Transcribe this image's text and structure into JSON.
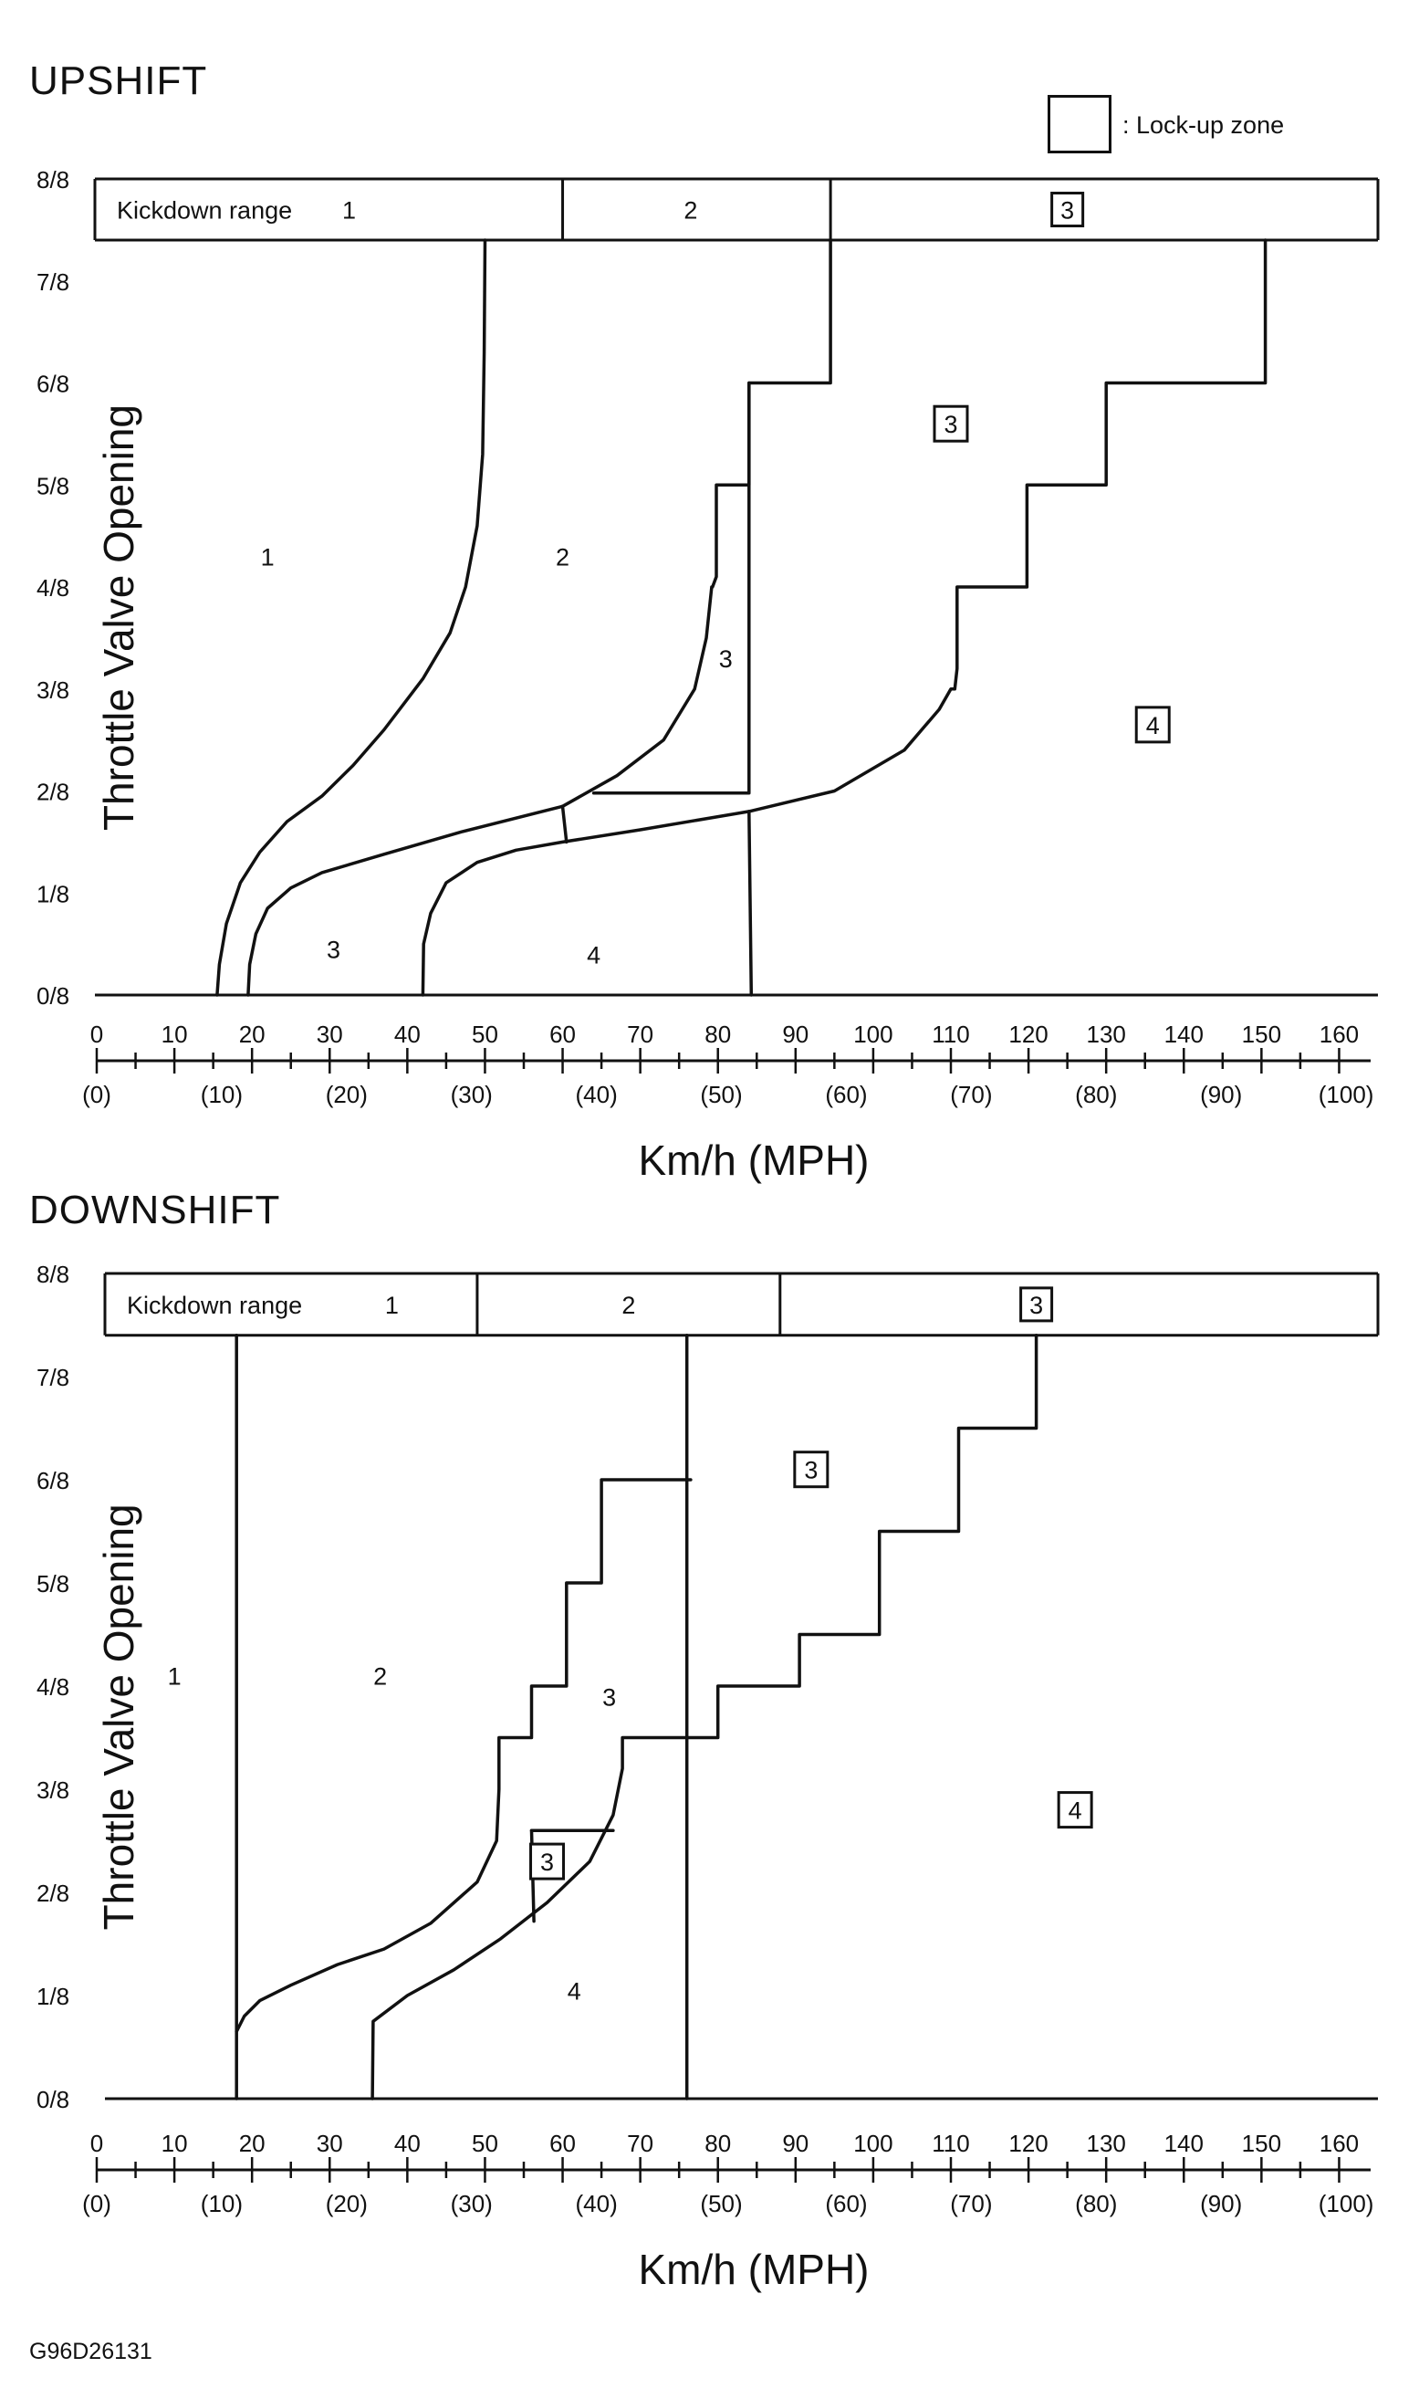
{
  "legend": {
    "box_label": ": Lock-up zone"
  },
  "figure_code": "G96D26131",
  "chart_data": [
    {
      "type": "line",
      "title": "UPSHIFT",
      "ylabel": "Throttle Valve Opening",
      "xlabel": "Km/h (MPH)",
      "xlim": [
        0,
        165
      ],
      "ylim": [
        0,
        8
      ],
      "x_ticks": [
        "0",
        "10",
        "20",
        "30",
        "40",
        "50",
        "60",
        "70",
        "80",
        "90",
        "100",
        "110",
        "120",
        "130",
        "140",
        "150",
        "160"
      ],
      "x_ticks_mph": [
        "(0)",
        "(10)",
        "(20)",
        "(30)",
        "(40)",
        "(50)",
        "(60)",
        "(70)",
        "(80)",
        "(90)",
        "(100)"
      ],
      "y_ticks": [
        "0/8",
        "1/8",
        "2/8",
        "3/8",
        "4/8",
        "5/8",
        "6/8",
        "7/8",
        "8/8"
      ],
      "kickdown": {
        "band": [
          7.4,
          8
        ],
        "label": "Kickdown range",
        "dividers": [
          60,
          94.5
        ],
        "labels": [
          {
            "text": "1",
            "x": 32.5,
            "boxed": false
          },
          {
            "text": "2",
            "x": 76.5,
            "boxed": false
          },
          {
            "text": "3",
            "x": 125,
            "boxed": true
          }
        ]
      },
      "series": [
        {
          "x": [
            15.5,
            15.8,
            16.7,
            18.5,
            21,
            24.5,
            29,
            33,
            37,
            42,
            45.5,
            47.5,
            49,
            49.7,
            49.9,
            50
          ],
          "y": [
            0,
            0.3,
            0.7,
            1.1,
            1.4,
            1.7,
            1.95,
            2.25,
            2.6,
            3.1,
            3.55,
            4,
            4.6,
            5.3,
            6.3,
            7.4
          ]
        },
        {
          "x": [
            19.5,
            19.7,
            20.5,
            22,
            25,
            29,
            37,
            47,
            60
          ],
          "y": [
            0,
            0.3,
            0.6,
            0.85,
            1.05,
            1.2,
            1.38,
            1.6,
            1.85
          ]
        },
        {
          "x": [
            60,
            67,
            73,
            77,
            78.5,
            79.2,
            79.3,
            79.8,
            79.8,
            84,
            84,
            94.5,
            94.5
          ],
          "y": [
            1.85,
            2.15,
            2.5,
            3,
            3.5,
            4,
            4,
            4.1,
            5,
            5,
            6,
            6,
            7.4
          ]
        },
        {
          "x": [
            64,
            84,
            84
          ],
          "y": [
            1.98,
            1.98,
            6
          ]
        },
        {
          "x": [
            42,
            42.1,
            43,
            45,
            49,
            54,
            60,
            70,
            84,
            95,
            104,
            108.5,
            110,
            110.5,
            110.8,
            110.8,
            119.8,
            119.8,
            130,
            130,
            150.5,
            150.5
          ],
          "y": [
            0,
            0.5,
            0.8,
            1.1,
            1.3,
            1.42,
            1.5,
            1.62,
            1.8,
            2,
            2.4,
            2.8,
            3,
            3,
            3.2,
            4,
            4,
            5,
            5,
            6,
            6,
            7.4
          ]
        },
        {
          "x": [
            60,
            60.5
          ],
          "y": [
            1.85,
            1.5
          ]
        },
        {
          "x": [
            84,
            84.3
          ],
          "y": [
            1.8,
            0
          ]
        }
      ],
      "zone_labels": [
        {
          "text": "1",
          "x": 22,
          "y": 4.3,
          "boxed": false
        },
        {
          "text": "2",
          "x": 60,
          "y": 4.3,
          "boxed": false
        },
        {
          "text": "3",
          "x": 81,
          "y": 3.3,
          "boxed": false
        },
        {
          "text": "3",
          "x": 30.5,
          "y": 0.45,
          "boxed": false
        },
        {
          "text": "4",
          "x": 64,
          "y": 0.4,
          "boxed": false
        },
        {
          "text": "3",
          "x": 110,
          "y": 5.6,
          "boxed": true
        },
        {
          "text": "4",
          "x": 136,
          "y": 2.65,
          "boxed": true
        }
      ]
    },
    {
      "type": "line",
      "title": "DOWNSHIFT",
      "ylabel": "Throttle Valve Opening",
      "xlabel": "Km/h (MPH)",
      "xlim": [
        0,
        165
      ],
      "ylim": [
        0,
        8
      ],
      "x_ticks": [
        "0",
        "10",
        "20",
        "30",
        "40",
        "50",
        "60",
        "70",
        "80",
        "90",
        "100",
        "110",
        "120",
        "130",
        "140",
        "150",
        "160"
      ],
      "x_ticks_mph": [
        "(0)",
        "(10)",
        "(20)",
        "(30)",
        "(40)",
        "(50)",
        "(60)",
        "(70)",
        "(80)",
        "(90)",
        "(100)"
      ],
      "y_ticks": [
        "0/8",
        "1/8",
        "2/8",
        "3/8",
        "4/8",
        "5/8",
        "6/8",
        "7/8",
        "8/8"
      ],
      "kickdown": {
        "band": [
          7.4,
          8
        ],
        "label": "Kickdown range",
        "dividers": [
          49,
          88
        ],
        "labels": [
          {
            "text": "1",
            "x": 38,
            "boxed": false
          },
          {
            "text": "2",
            "x": 68.5,
            "boxed": false
          },
          {
            "text": "3",
            "x": 121,
            "boxed": true
          }
        ]
      },
      "series": [
        {
          "x": [
            18,
            18
          ],
          "y": [
            0,
            7.4
          ]
        },
        {
          "x": [
            76,
            76
          ],
          "y": [
            0,
            7.4
          ]
        },
        {
          "x": [
            18,
            19,
            21,
            25,
            31,
            37,
            43,
            49,
            51.5,
            51.8,
            51.8,
            56,
            56,
            60.5,
            60.5,
            65,
            65,
            76.5
          ],
          "y": [
            0.65,
            0.8,
            0.95,
            1.1,
            1.3,
            1.45,
            1.7,
            2.1,
            2.5,
            3,
            3.5,
            3.5,
            4,
            4,
            5,
            5,
            6,
            6
          ]
        },
        {
          "x": [
            35.5,
            35.6,
            40,
            46,
            52,
            58,
            63.5,
            66.5,
            67.7,
            67.7,
            79.5,
            80,
            80,
            90.5,
            90.5,
            100.8,
            100.8,
            111,
            111,
            121,
            121
          ],
          "y": [
            0,
            0.75,
            1,
            1.25,
            1.55,
            1.9,
            2.3,
            2.75,
            3.2,
            3.5,
            3.5,
            3.5,
            4,
            4,
            4.5,
            4.5,
            5.5,
            5.5,
            6.5,
            6.5,
            7.4
          ]
        },
        {
          "x": [
            56,
            66.5
          ],
          "y": [
            2.6,
            2.6
          ]
        },
        {
          "x": [
            56,
            56.3
          ],
          "y": [
            2.6,
            1.72
          ]
        }
      ],
      "zone_labels": [
        {
          "text": "1",
          "x": 10,
          "y": 4.1,
          "boxed": false
        },
        {
          "text": "2",
          "x": 36.5,
          "y": 4.1,
          "boxed": false
        },
        {
          "text": "3",
          "x": 66,
          "y": 3.9,
          "boxed": false
        },
        {
          "text": "4",
          "x": 61.5,
          "y": 1.05,
          "boxed": false
        },
        {
          "text": "3",
          "x": 58,
          "y": 2.3,
          "boxed": true
        },
        {
          "text": "3",
          "x": 92,
          "y": 6.1,
          "boxed": true
        },
        {
          "text": "4",
          "x": 126,
          "y": 2.8,
          "boxed": true
        }
      ]
    }
  ]
}
